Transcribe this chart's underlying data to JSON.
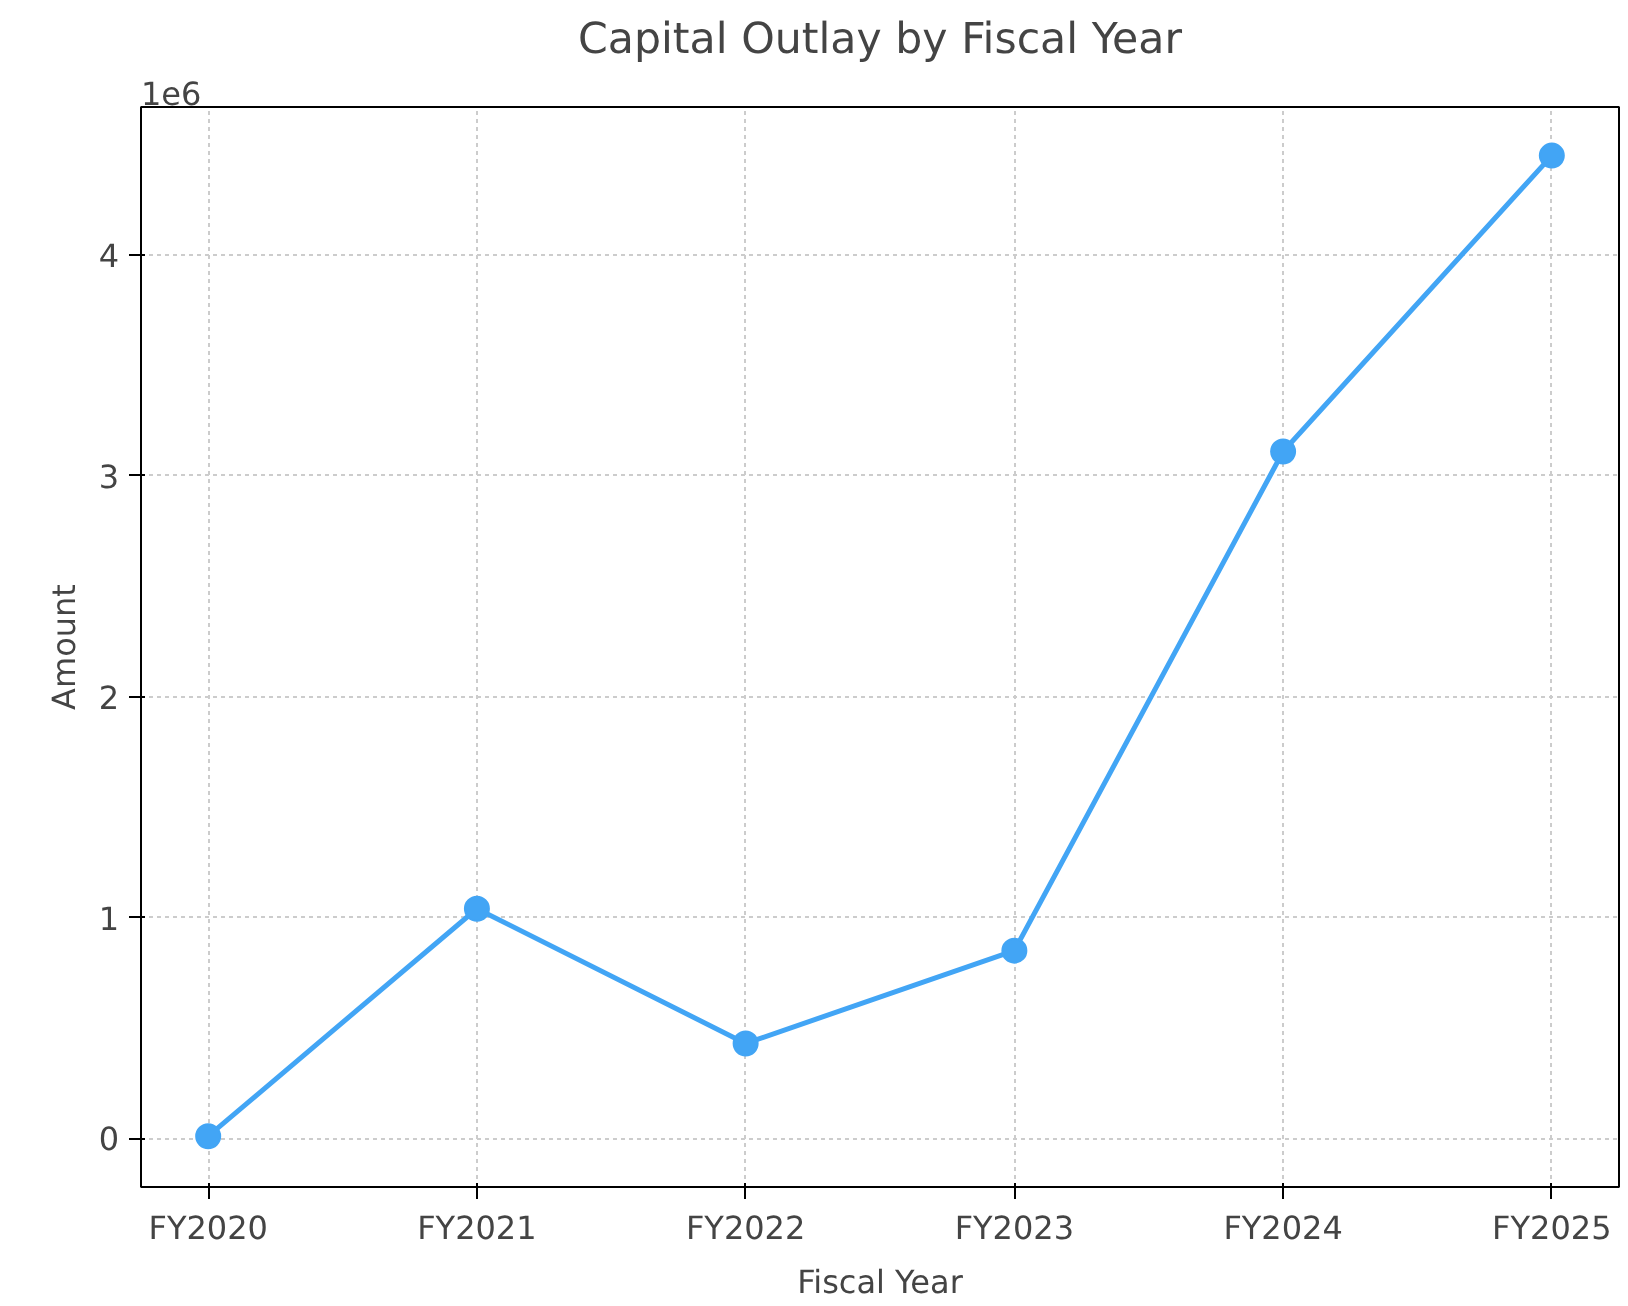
{
  "chart_data": {
    "type": "line",
    "title": "Capital Outlay by Fiscal Year",
    "xlabel": "Fiscal Year",
    "ylabel": "Amount",
    "annotations": [
      "1e6"
    ],
    "categories": [
      "FY2020",
      "FY2021",
      "FY2022",
      "FY2023",
      "FY2024",
      "FY2025"
    ],
    "series": [
      {
        "color": "#42a5f5",
        "values": [
          0.01,
          1.04,
          0.43,
          0.85,
          3.11,
          4.45
        ]
      }
    ],
    "ylim": [
      -0.22,
      4.67
    ],
    "yticks": [
      0,
      1,
      2,
      3,
      4
    ],
    "grid": true,
    "marker": "circle",
    "line_style": "solid"
  }
}
